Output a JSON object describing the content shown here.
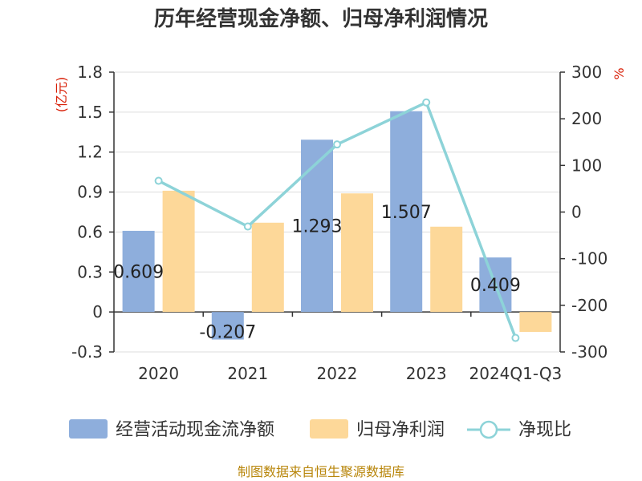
{
  "chart_data": {
    "type": "bar",
    "title": "历年经营现金净额、归母净利润情况",
    "categories": [
      "2020",
      "2021",
      "2022",
      "2023",
      "2024Q1-Q3"
    ],
    "left_unit": "(亿元)",
    "right_unit": "%",
    "ylim_left": [
      -0.3,
      1.8
    ],
    "ylim_right": [
      -300,
      300
    ],
    "left_ticks": [
      "-0.3",
      "0",
      "0.3",
      "0.6",
      "0.9",
      "1.2",
      "1.5",
      "1.8"
    ],
    "right_ticks": [
      "-300",
      "-200",
      "-100",
      "0",
      "100",
      "200",
      "300"
    ],
    "grid": true,
    "legend_position": "bottom",
    "series": [
      {
        "name": "经营活动现金流净额",
        "kind": "bar",
        "axis": "left",
        "color": "#8eaedc",
        "values": [
          0.609,
          -0.207,
          1.293,
          1.507,
          0.409
        ],
        "labels": [
          "0.609",
          "-0.207",
          "1.293",
          "1.507",
          "0.409"
        ]
      },
      {
        "name": "归母净利润",
        "kind": "bar",
        "axis": "left",
        "color": "#fdd899",
        "values": [
          0.91,
          0.67,
          0.89,
          0.64,
          -0.15
        ]
      },
      {
        "name": "净现比",
        "kind": "line",
        "axis": "right",
        "color": "#8dd3d8",
        "values": [
          67,
          -31,
          145,
          235,
          -270
        ]
      }
    ],
    "source": "制图数据来自恒生聚源数据库"
  }
}
